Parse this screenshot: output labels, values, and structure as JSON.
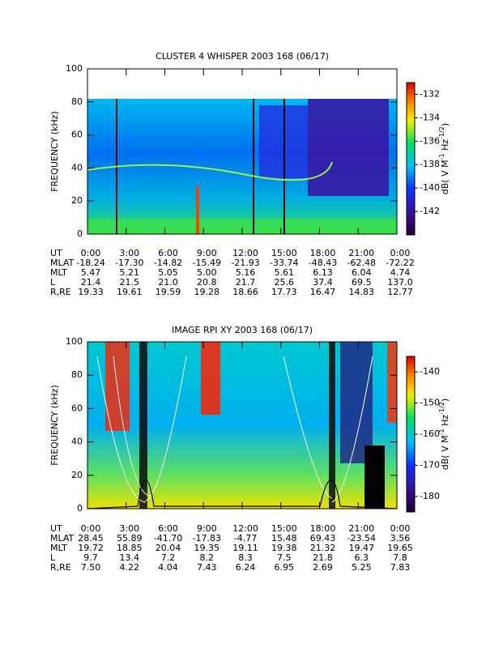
{
  "panels": [
    {
      "type": "spectrogram",
      "title": "CLUSTER 4 WHISPER 2003 168 (06/17)",
      "y_label": "FREQUENCY (kHz)",
      "ylim": [
        0,
        100
      ],
      "yticks": [
        0,
        20,
        40,
        60,
        80,
        100
      ],
      "colorbar_label": [
        "dB( V M",
        "-1",
        " Hz",
        "-1/2",
        ")"
      ],
      "clim": [
        -144,
        -131
      ],
      "cticks": [
        -132,
        -134,
        -136,
        -138,
        -140,
        -142
      ],
      "ephemeris": [
        {
          "name": "UT",
          "values": [
            "0:00",
            "3:00",
            "6:00",
            "9:00",
            "12:00",
            "15:00",
            "18:00",
            "21:00",
            "0:00"
          ]
        },
        {
          "name": "MLAT",
          "values": [
            "-18.24",
            "-17.30",
            "-14.82",
            "-15.49",
            "-21.93",
            "-33.74",
            "-48.43",
            "-62.48",
            "-72.22"
          ]
        },
        {
          "name": "MLT",
          "values": [
            "5.47",
            "5.21",
            "5.05",
            "5.00",
            "5.16",
            "5.61",
            "6.13",
            "6.04",
            "4.74"
          ]
        },
        {
          "name": "L",
          "values": [
            "21.4",
            "21.5",
            "21.0",
            "20.8",
            "21.7",
            "25.6",
            "37.4",
            "69.5",
            "137.0"
          ]
        },
        {
          "name": "R,RE",
          "values": [
            "19.33",
            "19.61",
            "19.59",
            "19.28",
            "18.66",
            "17.73",
            "16.47",
            "14.83",
            "12.77"
          ]
        }
      ]
    },
    {
      "type": "spectrogram",
      "title": "IMAGE RPI XY 2003 168 (06/17)",
      "y_label": "FREQUENCY (kHz)",
      "ylim": [
        0,
        100
      ],
      "yticks": [
        0,
        20,
        40,
        60,
        80,
        100
      ],
      "colorbar_label": [
        "dB( V M",
        "-1",
        " Hz",
        "-1/2",
        ")"
      ],
      "clim": [
        -185,
        -135
      ],
      "cticks": [
        -140,
        -150,
        -160,
        -170,
        -180
      ],
      "ephemeris": [
        {
          "name": "UT",
          "values": [
            "0:00",
            "3:00",
            "6:00",
            "9:00",
            "12:00",
            "15:00",
            "18:00",
            "21:00",
            "0:00"
          ]
        },
        {
          "name": "MLAT",
          "values": [
            "28.45",
            "55.89",
            "-41.70",
            "-17.83",
            "-4.77",
            "15.48",
            "69.43",
            "-23.54",
            "3.56"
          ]
        },
        {
          "name": "MLT",
          "values": [
            "19.72",
            "18.85",
            "20.04",
            "19.35",
            "19.11",
            "19.38",
            "21.32",
            "19.47",
            "19.65"
          ]
        },
        {
          "name": "L",
          "values": [
            "9.7",
            "13.4",
            "7.2",
            "8.2",
            "8.3",
            "7.5",
            "21.8",
            "6.3",
            "7.8"
          ]
        },
        {
          "name": "R,RE",
          "values": [
            "7.50",
            "4.22",
            "4.04",
            "7.43",
            "6.24",
            "6.95",
            "2.69",
            "5.25",
            "7.83"
          ]
        }
      ]
    }
  ]
}
